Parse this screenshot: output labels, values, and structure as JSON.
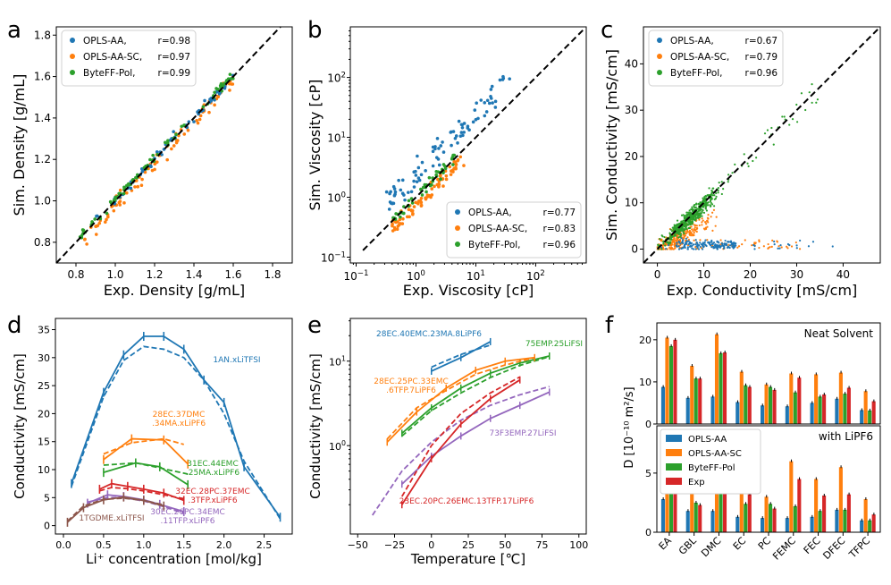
{
  "colors": {
    "blue": "#1f77b4",
    "orange": "#ff7f0e",
    "green": "#2ca02c",
    "red": "#d62728",
    "purple": "#9467bd",
    "brown": "#8c564b"
  },
  "chart_data": [
    {
      "id": "a",
      "type": "scatter",
      "panel_letter": "a",
      "xlabel": "Exp. Density [g/mL]",
      "ylabel": "Sim. Density [g/mL]",
      "xlim": [
        0.7,
        1.9
      ],
      "ylim": [
        0.7,
        1.84
      ],
      "xticks": [
        "0.8",
        "1.0",
        "1.2",
        "1.4",
        "1.6",
        "1.8"
      ],
      "yticks": [
        "0.8",
        "1.0",
        "1.2",
        "1.4",
        "1.6",
        "1.8"
      ],
      "legend_position": "top-left",
      "series": [
        {
          "name": "OPLS-AA,",
          "r": "r=0.98",
          "color": "blue"
        },
        {
          "name": "OPLS-AA-SC,",
          "r": "r=0.97",
          "color": "orange"
        },
        {
          "name": "ByteFF-Pol,",
          "r": "r=0.99",
          "color": "green"
        }
      ]
    },
    {
      "id": "b",
      "type": "scatter",
      "panel_letter": "b",
      "scale": "log",
      "xlabel": "Exp. Viscosity [cP]",
      "ylabel": "Sim. Viscosity [cP]",
      "xlim": [
        0.08,
        700
      ],
      "ylim": [
        0.08,
        700
      ],
      "ticks": [
        {
          "v": 0.1,
          "t": "10",
          "e": "−1"
        },
        {
          "v": 1,
          "t": "10",
          "e": "0"
        },
        {
          "v": 10,
          "t": "10",
          "e": "1"
        },
        {
          "v": 100,
          "t": "10",
          "e": "2"
        }
      ],
      "legend_position": "bottom-right",
      "series": [
        {
          "name": "OPLS-AA,",
          "r": "r=0.77",
          "color": "blue"
        },
        {
          "name": "OPLS-AA-SC,",
          "r": "r=0.83",
          "color": "orange"
        },
        {
          "name": "ByteFF-Pol,",
          "r": "r=0.96",
          "color": "green"
        }
      ]
    },
    {
      "id": "c",
      "type": "scatter",
      "panel_letter": "c",
      "xlabel": "Exp. Conductivity [mS/cm]",
      "ylabel": "Sim. Conductivity [mS/cm]",
      "xlim": [
        -3,
        48
      ],
      "ylim": [
        -3,
        48
      ],
      "xticks": [
        "0",
        "10",
        "20",
        "30",
        "40"
      ],
      "yticks": [
        "0",
        "10",
        "20",
        "30",
        "40"
      ],
      "legend_position": "top-left",
      "series": [
        {
          "name": "OPLS-AA,",
          "r": "r=0.67",
          "color": "blue"
        },
        {
          "name": "OPLS-AA-SC,",
          "r": "r=0.79",
          "color": "orange"
        },
        {
          "name": "ByteFF-Pol,",
          "r": "r=0.96",
          "color": "green"
        }
      ]
    },
    {
      "id": "d",
      "type": "line",
      "panel_letter": "d",
      "xlabel": "Li⁺ concentration [mol/kg]",
      "ylabel": "Conductivity [mS/cm]",
      "xlim": [
        -0.1,
        2.85
      ],
      "ylim": [
        -1.5,
        37
      ],
      "xticks": [
        "0.0",
        "0.5",
        "1.0",
        "1.5",
        "2.0",
        "2.5"
      ],
      "yticks": [
        "0",
        "5",
        "10",
        "15",
        "20",
        "25",
        "30",
        "35"
      ],
      "series": [
        {
          "name": "1AN.xLiTFSI",
          "color": "blue",
          "exp": [
            [
              0.1,
              7.5
            ],
            [
              0.5,
              23.8
            ],
            [
              0.75,
              30.5
            ],
            [
              1.0,
              33.8
            ],
            [
              1.25,
              33.8
            ],
            [
              1.5,
              31.5
            ],
            [
              1.75,
              26
            ],
            [
              2.0,
              22
            ],
            [
              2.25,
              10.5
            ],
            [
              2.7,
              1.5
            ]
          ],
          "sim": [
            [
              0.1,
              7
            ],
            [
              0.5,
              23
            ],
            [
              0.75,
              29.5
            ],
            [
              1.0,
              32
            ],
            [
              1.25,
              31.5
            ],
            [
              1.5,
              30
            ],
            [
              1.75,
              26
            ],
            [
              2.0,
              20
            ],
            [
              2.25,
              11.5
            ],
            [
              2.7,
              1.2
            ]
          ]
        },
        {
          "name": "28EC.37DMC\n.34MA.xLiPF6",
          "color": "orange",
          "exp": [
            [
              0.5,
              11.8
            ],
            [
              0.85,
              15.5
            ],
            [
              1.25,
              15.3
            ],
            [
              1.55,
              11
            ]
          ],
          "sim": [
            [
              0.5,
              12.8
            ],
            [
              0.85,
              14.8
            ],
            [
              1.25,
              15.5
            ],
            [
              1.5,
              14.5
            ]
          ]
        },
        {
          "name": "31EC.44EMC\n.25MA.xLiPF6",
          "color": "green",
          "exp": [
            [
              0.5,
              9.5
            ],
            [
              0.9,
              11.2
            ],
            [
              1.2,
              10.5
            ],
            [
              1.55,
              7.3
            ]
          ],
          "sim": [
            [
              0.5,
              10.8
            ],
            [
              0.9,
              11.2
            ],
            [
              1.2,
              10.3
            ],
            [
              1.55,
              9.2
            ]
          ]
        },
        {
          "name": "32EC.28PC.37EMC\n.3TFP.xLiPF6",
          "color": "red",
          "exp": [
            [
              0.45,
              6.5
            ],
            [
              0.6,
              7.5
            ],
            [
              0.8,
              7
            ],
            [
              1.0,
              6.5
            ],
            [
              1.25,
              5.8
            ],
            [
              1.5,
              4.5
            ]
          ],
          "sim": [
            [
              0.45,
              6.2
            ],
            [
              0.6,
              6.8
            ],
            [
              0.8,
              6.6
            ],
            [
              1.0,
              6.2
            ],
            [
              1.25,
              5.5
            ],
            [
              1.5,
              4.8
            ]
          ]
        },
        {
          "name": "30EC.26PC.34EMC\n.11TFP.xLiPF6",
          "color": "purple",
          "exp": [
            [
              0.3,
              4
            ],
            [
              0.55,
              5.5
            ],
            [
              0.75,
              5.2
            ],
            [
              1.0,
              4.6
            ],
            [
              1.2,
              3.8
            ],
            [
              1.5,
              2.5
            ]
          ],
          "sim": [
            [
              0.3,
              4.2
            ],
            [
              0.55,
              5
            ],
            [
              0.75,
              5
            ],
            [
              1.0,
              4.4
            ],
            [
              1.2,
              3.6
            ],
            [
              1.5,
              2.2
            ]
          ]
        },
        {
          "name": "1TGDME.xLiTFSI",
          "color": "brown",
          "exp": [
            [
              0.05,
              0.6
            ],
            [
              0.25,
              3.2
            ],
            [
              0.5,
              4.6
            ],
            [
              0.75,
              5.1
            ],
            [
              1.0,
              4.5
            ],
            [
              1.25,
              3.5
            ]
          ],
          "sim": [
            [
              0.05,
              0.8
            ],
            [
              0.25,
              3.5
            ],
            [
              0.5,
              4.7
            ],
            [
              0.75,
              4.9
            ],
            [
              1.0,
              4.5
            ],
            [
              1.25,
              3.7
            ]
          ]
        }
      ]
    },
    {
      "id": "e",
      "type": "line",
      "panel_letter": "e",
      "yscale": "log",
      "xlabel": "Temperature [℃]",
      "ylabel": "Conductivity [mS/cm]",
      "xlim": [
        -55,
        105
      ],
      "ylim": [
        0.09,
        32
      ],
      "xticks": [
        "−50",
        "−25",
        "0",
        "25",
        "50",
        "75",
        "100"
      ],
      "yticks": [
        {
          "v": 1,
          "t": "10",
          "e": "0"
        },
        {
          "v": 10,
          "t": "10",
          "e": "1"
        }
      ],
      "series": [
        {
          "name": "28EC.40EMC.23MA.8LiPF6",
          "color": "blue",
          "exp": [
            [
              0,
              7.6
            ],
            [
              20,
              11
            ],
            [
              40,
              17
            ]
          ],
          "sim": [
            [
              0,
              8.5
            ],
            [
              20,
              12
            ],
            [
              40,
              15.5
            ]
          ]
        },
        {
          "name": "75EMP.25LiFSI",
          "color": "green",
          "exp": [
            [
              -20,
              1.4
            ],
            [
              0,
              2.8
            ],
            [
              20,
              4.8
            ],
            [
              40,
              7.2
            ],
            [
              60,
              9.5
            ],
            [
              80,
              11.5
            ]
          ],
          "sim": [
            [
              -20,
              1.3
            ],
            [
              0,
              2.6
            ],
            [
              20,
              4.2
            ],
            [
              40,
              6.4
            ],
            [
              60,
              8.9
            ],
            [
              80,
              11.3
            ]
          ]
        },
        {
          "name": "28EC.25PC.33EMC\n.6TFP.7LiPF6",
          "color": "orange",
          "exp": [
            [
              -30,
              1.1
            ],
            [
              -10,
              2.5
            ],
            [
              10,
              4.8
            ],
            [
              30,
              7.8
            ],
            [
              50,
              10
            ],
            [
              70,
              11
            ]
          ],
          "sim": [
            [
              -30,
              1.2
            ],
            [
              -10,
              2.8
            ],
            [
              10,
              4.5
            ],
            [
              30,
              7
            ],
            [
              50,
              9
            ],
            [
              70,
              11
            ]
          ]
        },
        {
          "name": "73F3EMP.27LiFSI",
          "color": "purple",
          "exp": [
            [
              -20,
              0.35
            ],
            [
              0,
              0.75
            ],
            [
              20,
              1.3
            ],
            [
              40,
              2.1
            ],
            [
              60,
              3
            ],
            [
              80,
              4.3
            ]
          ],
          "sim": [
            [
              -40,
              0.15
            ],
            [
              -20,
              0.5
            ],
            [
              0,
              1.1
            ],
            [
              20,
              2
            ],
            [
              40,
              3
            ],
            [
              60,
              4
            ],
            [
              80,
              5
            ]
          ]
        },
        {
          "name": "23EC.20PC.26EMC.13TFP.17LiPF6",
          "color": "red",
          "exp": [
            [
              -20,
              0.2
            ],
            [
              0,
              0.7
            ],
            [
              20,
              1.8
            ],
            [
              40,
              3.6
            ],
            [
              60,
              6
            ]
          ],
          "sim": [
            [
              -20,
              0.25
            ],
            [
              0,
              1
            ],
            [
              20,
              2.4
            ],
            [
              40,
              4.2
            ],
            [
              60,
              6.5
            ]
          ]
        }
      ]
    },
    {
      "id": "f",
      "type": "bar",
      "panel_letter": "f",
      "ylabel": "D [10⁻¹⁰ m²/s]",
      "categories": [
        "EA",
        "GBL",
        "DMC",
        "EC",
        "PC",
        "FEMC",
        "FEC",
        "DFEC",
        "TFPC"
      ],
      "series_names": [
        "OPLS-AA",
        "OPLS-AA-SC",
        "ByteFF-Pol",
        "Exp"
      ],
      "series_colors": [
        "blue",
        "orange",
        "green",
        "red"
      ],
      "subplots": [
        {
          "title": "Neat Solvent",
          "ylim": [
            0,
            24
          ],
          "yticks": [
            "0",
            "10",
            "20"
          ],
          "values": [
            [
              8.8,
              20.5,
              18.5,
              20
            ],
            [
              6.2,
              13.8,
              10.8,
              10.8
            ],
            [
              6.5,
              21.3,
              16.8,
              17
            ],
            [
              5.2,
              12.4,
              9.2,
              8.8
            ],
            [
              4.4,
              9.4,
              8.8,
              8.1
            ],
            [
              4.2,
              12,
              7.5,
              11
            ],
            [
              5,
              11.8,
              6.5,
              7
            ],
            [
              6,
              12.2,
              7.2,
              8.6
            ],
            [
              3.3,
              7.8,
              3.2,
              5.4
            ]
          ]
        },
        {
          "title": "with LiPF6",
          "ylim": [
            0,
            9
          ],
          "yticks": [
            "0",
            "5"
          ],
          "values": [
            [
              2.8,
              6.5,
              5.5,
              6
            ],
            [
              1.8,
              4.5,
              2.5,
              2.3
            ],
            [
              1.8,
              7.8,
              4.2,
              5
            ],
            [
              1.3,
              3.8,
              2.4,
              3.2
            ],
            [
              1.2,
              3,
              2.4,
              2
            ],
            [
              1.2,
              6,
              2.2,
              4.5
            ],
            [
              1.3,
              4.5,
              1.8,
              3.1
            ],
            [
              1.9,
              5.5,
              1.9,
              3.2
            ],
            [
              1,
              2.8,
              1,
              1.5
            ]
          ]
        }
      ]
    }
  ]
}
